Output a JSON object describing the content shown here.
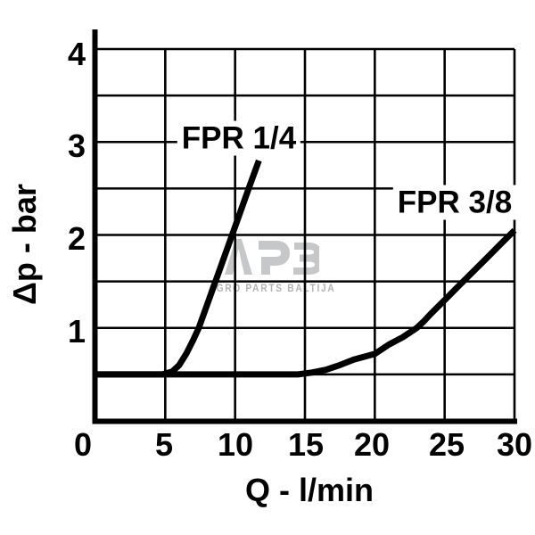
{
  "watermark": {
    "logo": "APB",
    "subtitle": "AGRO PARTS BALTIJA",
    "logo_color": "#c6c7c8",
    "subtitle_color": "#b0b3b5"
  },
  "chart_data": {
    "type": "line",
    "title": "",
    "xlabel": "Q - l/min",
    "ylabel": "Δp - bar",
    "xlim": [
      0,
      30
    ],
    "ylim": [
      0,
      4
    ],
    "x_ticks": [
      "0",
      "5",
      "10",
      "15",
      "20",
      "25",
      "30"
    ],
    "y_ticks": [
      "4",
      "3",
      "2",
      "1"
    ],
    "grid": {
      "on": true,
      "x_step": 5,
      "y_step": 0.5
    },
    "legend_position": "inline-labels",
    "line_color": "#000000",
    "grid_color": "#000000",
    "series": [
      {
        "name": "FPR 1/4",
        "points": [
          [
            0,
            0.5
          ],
          [
            4.8,
            0.5
          ],
          [
            5.5,
            0.53
          ],
          [
            6,
            0.6
          ],
          [
            6.5,
            0.72
          ],
          [
            7,
            0.87
          ],
          [
            7.4,
            1.0
          ],
          [
            8,
            1.25
          ],
          [
            9,
            1.67
          ],
          [
            10,
            2.09
          ],
          [
            11,
            2.51
          ],
          [
            11.7,
            2.8
          ]
        ]
      },
      {
        "name": "FPR 3/8",
        "points": [
          [
            0,
            0.5
          ],
          [
            14.5,
            0.5
          ],
          [
            15.5,
            0.52
          ],
          [
            16.5,
            0.55
          ],
          [
            17.5,
            0.6
          ],
          [
            18.5,
            0.66
          ],
          [
            19.5,
            0.7
          ],
          [
            20,
            0.72
          ],
          [
            21,
            0.82
          ],
          [
            22,
            0.9
          ],
          [
            23,
            1.0
          ],
          [
            23.5,
            1.07
          ],
          [
            24,
            1.15
          ],
          [
            25,
            1.3
          ],
          [
            26,
            1.45
          ],
          [
            27,
            1.6
          ],
          [
            28,
            1.75
          ],
          [
            29,
            1.9
          ],
          [
            30,
            2.05
          ]
        ]
      }
    ]
  }
}
